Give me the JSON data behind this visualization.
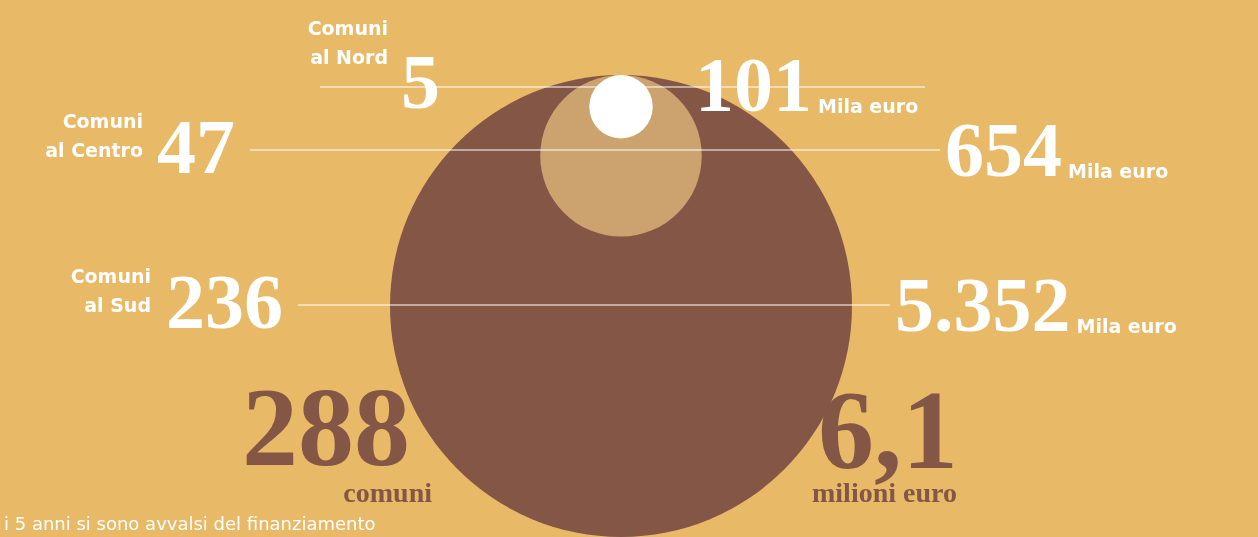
{
  "chart_data": {
    "type": "other",
    "categories": [
      "Comuni al Nord",
      "Comuni al Centro",
      "Comuni al Sud"
    ],
    "series": [
      {
        "color": "#ffffff",
        "values": [
          5,
          47,
          236
        ],
        "value_labels": [
          "5",
          "47",
          "236"
        ]
      },
      {
        "name": "Mila euro",
        "colors": [
          "#ffffff",
          "#cca26e",
          "#845646"
        ],
        "values": [
          101,
          654,
          5352
        ],
        "value_labels": [
          "101",
          "654",
          "5.352"
        ]
      }
    ],
    "annotations": [
      "288",
      "comuni",
      "6,1",
      "milioni euro",
      "i 5 anni si sono avvalsi del finanziamento"
    ]
  }
}
